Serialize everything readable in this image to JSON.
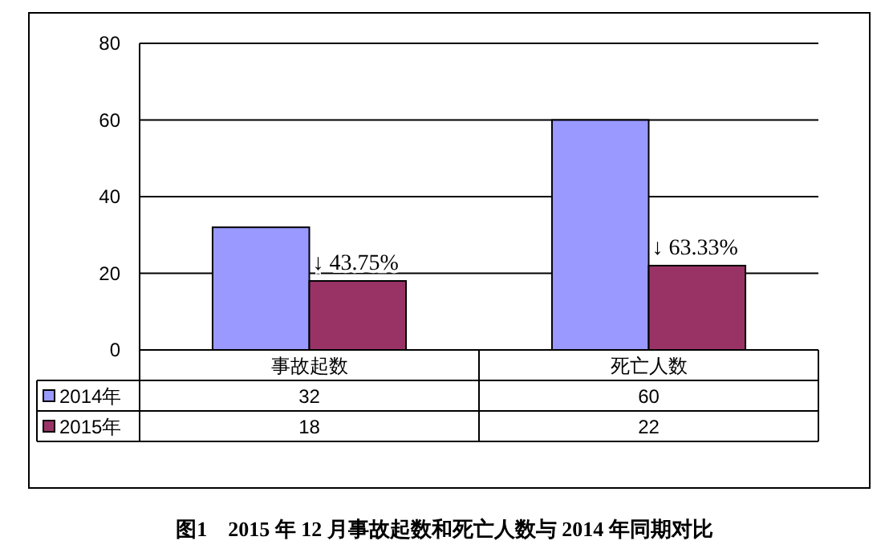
{
  "chart_data": {
    "type": "bar",
    "title": "图1　2015 年 12 月事故起数和死亡人数与 2014 年同期对比",
    "categories": [
      "事故起数",
      "死亡人数"
    ],
    "series": [
      {
        "name": "2014年",
        "color": "#9999ff",
        "values": [
          32,
          60
        ]
      },
      {
        "name": "2015年",
        "color": "#993366",
        "values": [
          18,
          22
        ]
      }
    ],
    "ylim": [
      0,
      80
    ],
    "yticks": [
      0,
      20,
      40,
      60,
      80
    ],
    "grid": "y",
    "data_labels": true,
    "legend": "bottom left",
    "annotations": [
      {
        "text": "↓ 43.75%",
        "x": "事故起数",
        "y": 18
      },
      {
        "text": "↓ 63.33%",
        "x": "死亡人数",
        "y": 22
      }
    ]
  }
}
